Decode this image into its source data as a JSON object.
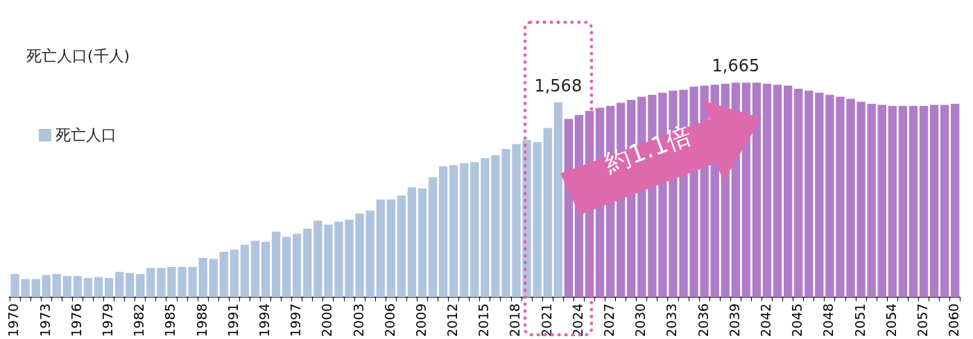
{
  "chart_data": {
    "type": "bar",
    "ylabel": "死亡人口(千人)",
    "legend": "top left",
    "tick_labels": "x",
    "categories": [
      "1970",
      null,
      null,
      "1973",
      null,
      null,
      "1976",
      null,
      null,
      "1979",
      null,
      null,
      "1982",
      null,
      null,
      "1985",
      null,
      null,
      "1988",
      null,
      null,
      "1991",
      null,
      null,
      "1994",
      null,
      null,
      "1997",
      null,
      null,
      "2000",
      null,
      null,
      "2003",
      null,
      null,
      "2006",
      null,
      null,
      "2009",
      null,
      null,
      "2012",
      null,
      null,
      "2015",
      null,
      null,
      "2018",
      null,
      null,
      "2021",
      null,
      null,
      "2024",
      null,
      null,
      "2027",
      null,
      null,
      "2030",
      null,
      null,
      "2033",
      null,
      null,
      "2036",
      null,
      null,
      "2039",
      null,
      null,
      "2042",
      null,
      null,
      "2045",
      null,
      null,
      "2048",
      null,
      null,
      "2051",
      null,
      null,
      "2054",
      null,
      null,
      "2057",
      null,
      null,
      "2060"
    ],
    "series": [
      {
        "name": "死亡人口",
        "color": "#b0c4de",
        "values": [
          715,
          690,
          690,
          710,
          715,
          705,
          705,
          695,
          700,
          695,
          725,
          720,
          715,
          745,
          745,
          750,
          750,
          750,
          795,
          790,
          825,
          835,
          860,
          880,
          875,
          925,
          900,
          915,
          940,
          980,
          960,
          975,
          985,
          1015,
          1030,
          1085,
          1085,
          1105,
          1145,
          1140,
          1195,
          1250,
          1255,
          1265,
          1270,
          1290,
          1305,
          1335,
          1360,
          1380,
          1370,
          1440,
          1568,
          null,
          null,
          null,
          null,
          null,
          null,
          null,
          null,
          null,
          null,
          null,
          null,
          null,
          null,
          null,
          null,
          null,
          null,
          null,
          null,
          null,
          null,
          null,
          null,
          null,
          null,
          null,
          null,
          null,
          null,
          null,
          null,
          null,
          null,
          null,
          null,
          null,
          null
        ],
        "value_labels": [
          null,
          null,
          null,
          null,
          null,
          null,
          null,
          null,
          null,
          null,
          null,
          null,
          null,
          null,
          null,
          null,
          null,
          null,
          null,
          null,
          null,
          null,
          null,
          null,
          null,
          null,
          null,
          null,
          null,
          null,
          null,
          null,
          null,
          null,
          null,
          null,
          null,
          null,
          null,
          null,
          null,
          null,
          null,
          null,
          null,
          null,
          null,
          null,
          null,
          null,
          null,
          null,
          "1,568",
          null,
          null,
          null,
          null,
          null,
          null,
          null,
          null,
          null,
          null,
          null,
          null,
          null,
          null,
          null,
          null,
          null,
          null,
          null,
          null,
          null,
          null,
          null,
          null,
          null,
          null,
          null,
          null,
          null,
          null,
          null,
          null,
          null,
          null,
          null,
          null,
          null,
          null
        ]
      },
      {
        "color": "#b07cc8",
        "values": [
          null,
          null,
          null,
          null,
          null,
          null,
          null,
          null,
          null,
          null,
          null,
          null,
          null,
          null,
          null,
          null,
          null,
          null,
          null,
          null,
          null,
          null,
          null,
          null,
          null,
          null,
          null,
          null,
          null,
          null,
          null,
          null,
          null,
          null,
          null,
          null,
          null,
          null,
          null,
          null,
          null,
          null,
          null,
          null,
          null,
          null,
          null,
          null,
          null,
          null,
          null,
          null,
          null,
          1485,
          1505,
          1525,
          1540,
          1550,
          1565,
          1580,
          1595,
          1605,
          1615,
          1625,
          1630,
          1645,
          1650,
          1655,
          1660,
          1665,
          1665,
          1665,
          1660,
          1655,
          1650,
          1635,
          1625,
          1615,
          1605,
          1595,
          1585,
          1570,
          1560,
          1555,
          1550,
          1550,
          1550,
          1550,
          1555,
          1555,
          1560
        ],
        "value_labels": [
          null,
          null,
          null,
          null,
          null,
          null,
          null,
          null,
          null,
          null,
          null,
          null,
          null,
          null,
          null,
          null,
          null,
          null,
          null,
          null,
          null,
          null,
          null,
          null,
          null,
          null,
          null,
          null,
          null,
          null,
          null,
          null,
          null,
          null,
          null,
          null,
          null,
          null,
          null,
          null,
          null,
          null,
          null,
          null,
          null,
          null,
          null,
          null,
          null,
          null,
          null,
          null,
          null,
          null,
          null,
          null,
          null,
          null,
          null,
          null,
          null,
          null,
          null,
          null,
          null,
          null,
          null,
          null,
          null,
          "1,665",
          null,
          null,
          null,
          null,
          null,
          null,
          null,
          null,
          null,
          null,
          null,
          null,
          null,
          null,
          null,
          null,
          null,
          null,
          null,
          null,
          null
        ]
      }
    ],
    "annotations": [
      "約1.1倍"
    ]
  }
}
